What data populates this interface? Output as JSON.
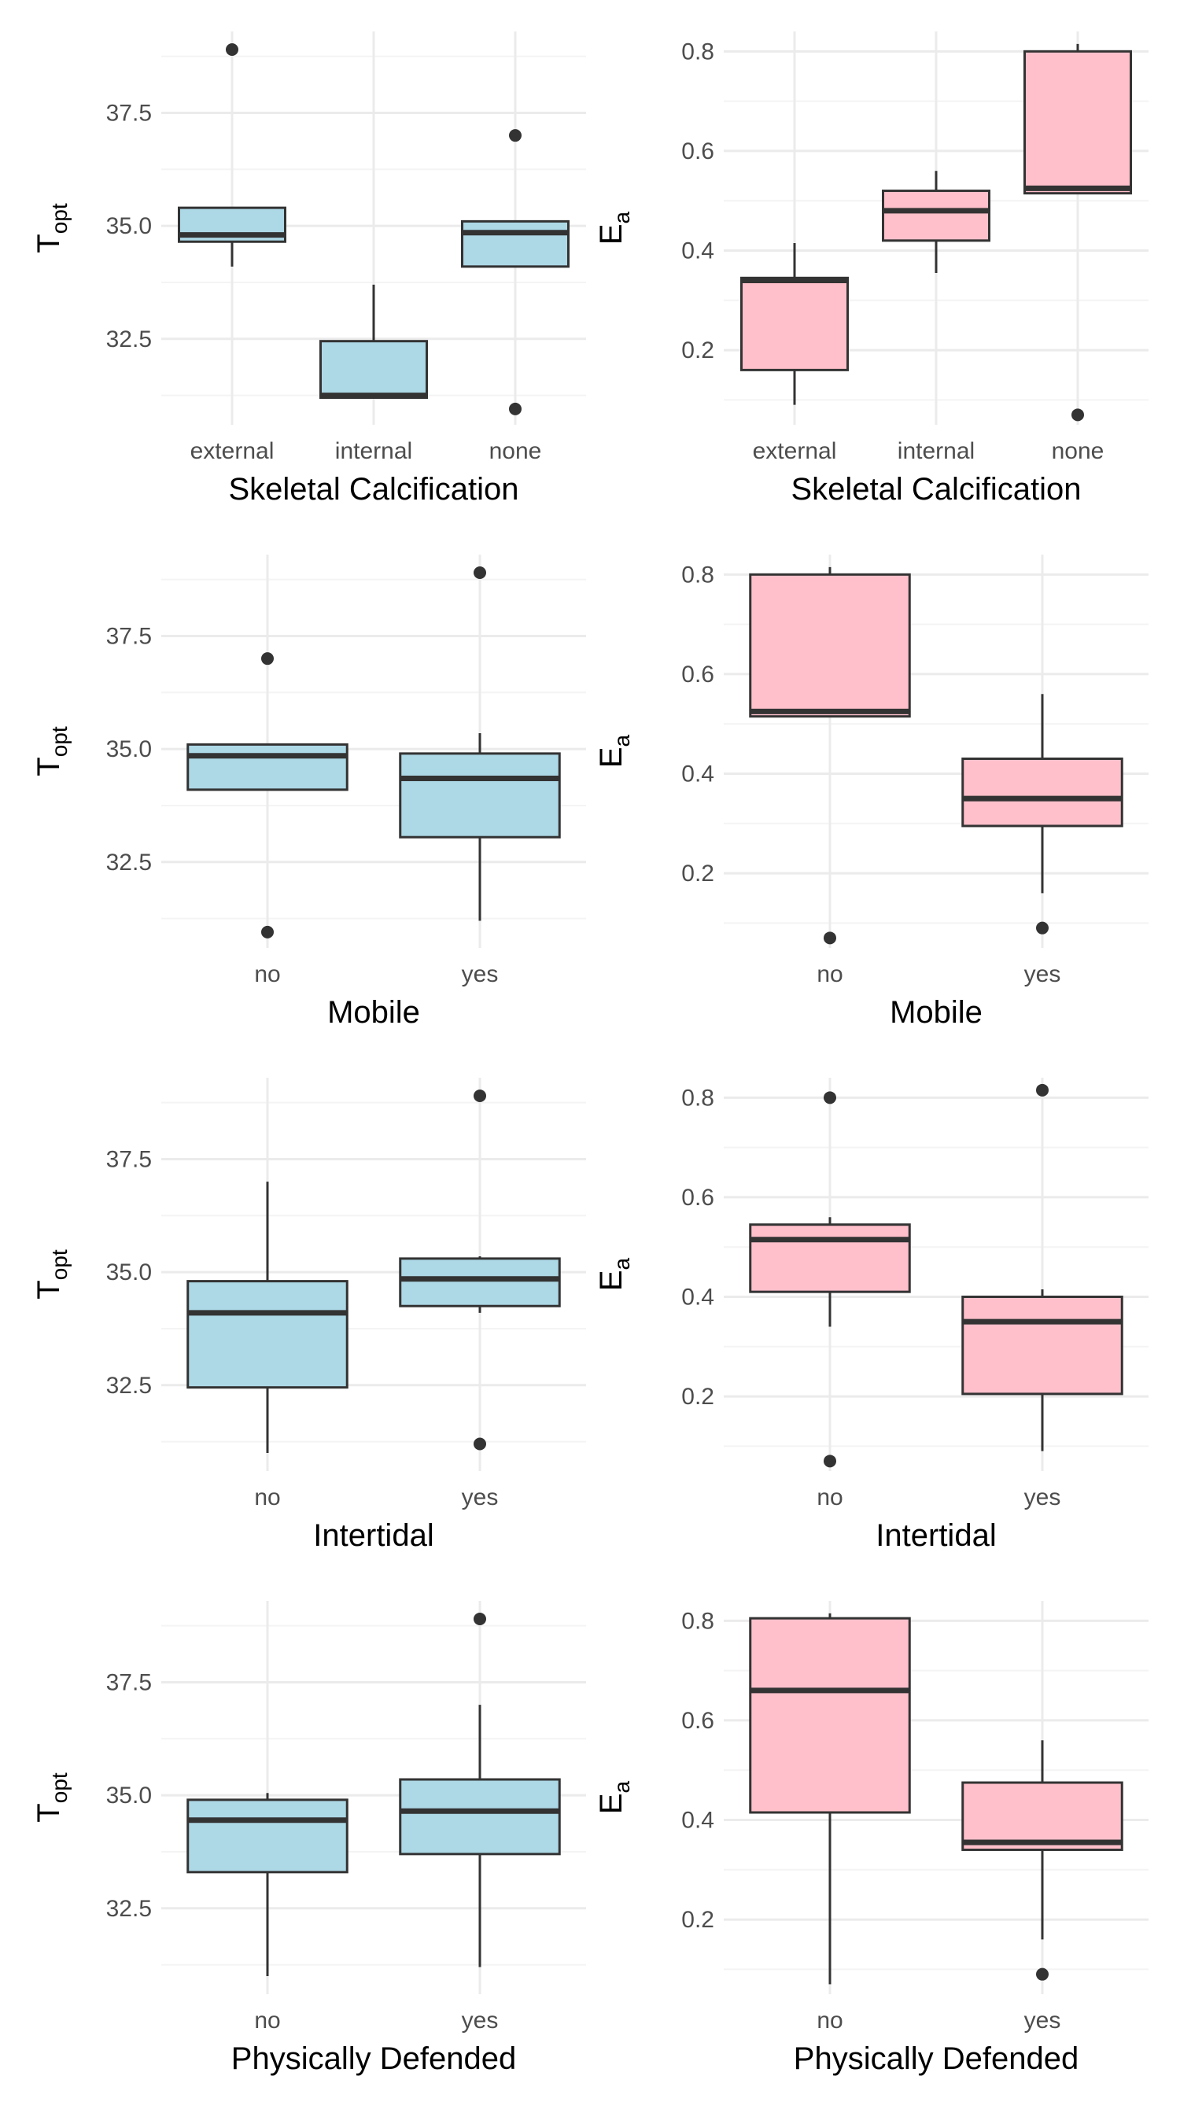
{
  "colors": {
    "topt_fill": "#add8e6",
    "ea_fill": "#ffc0cb",
    "stroke": "#333333",
    "grid_major": "#ebebeb",
    "grid_minor": "#f4f4f4",
    "tick_text": "#4d4d4d"
  },
  "chart_data": [
    {
      "type": "box",
      "xlabel": "Skeletal Calcification",
      "ylabel": {
        "main": "T",
        "sub": "opt"
      },
      "ylim": [
        30.6,
        39.3
      ],
      "yticks": [
        32.5,
        35.0,
        37.5
      ],
      "ytick_labels": [
        "32.5",
        "35.0",
        "37.5"
      ],
      "fill": "topt",
      "boxes": [
        {
          "category": "external",
          "whisker_low": 34.1,
          "q1": 34.65,
          "median": 34.8,
          "q3": 35.4,
          "whisker_high": 35.4,
          "outliers": [
            38.9
          ]
        },
        {
          "category": "internal",
          "whisker_low": 31.2,
          "q1": 31.2,
          "median": 31.25,
          "q3": 32.45,
          "whisker_high": 33.7,
          "outliers": []
        },
        {
          "category": "none",
          "whisker_low": 34.1,
          "q1": 34.1,
          "median": 34.85,
          "q3": 35.1,
          "whisker_high": 35.1,
          "outliers": [
            37.0,
            30.95
          ]
        }
      ]
    },
    {
      "type": "box",
      "xlabel": "Skeletal Calcification",
      "ylabel": {
        "main": "E",
        "sub": "a"
      },
      "ylim": [
        0.05,
        0.84
      ],
      "yticks": [
        0.2,
        0.4,
        0.6,
        0.8
      ],
      "ytick_labels": [
        "0.2",
        "0.4",
        "0.6",
        "0.8"
      ],
      "fill": "ea",
      "boxes": [
        {
          "category": "external",
          "whisker_low": 0.09,
          "q1": 0.16,
          "median": 0.34,
          "q3": 0.345,
          "whisker_high": 0.415,
          "outliers": []
        },
        {
          "category": "internal",
          "whisker_low": 0.355,
          "q1": 0.42,
          "median": 0.48,
          "q3": 0.52,
          "whisker_high": 0.56,
          "outliers": []
        },
        {
          "category": "none",
          "whisker_low": 0.515,
          "q1": 0.515,
          "median": 0.525,
          "q3": 0.8,
          "whisker_high": 0.815,
          "outliers": [
            0.07
          ]
        }
      ]
    },
    {
      "type": "box",
      "xlabel": "Mobile",
      "ylabel": {
        "main": "T",
        "sub": "opt"
      },
      "ylim": [
        30.6,
        39.3
      ],
      "yticks": [
        32.5,
        35.0,
        37.5
      ],
      "ytick_labels": [
        "32.5",
        "35.0",
        "37.5"
      ],
      "fill": "topt",
      "boxes": [
        {
          "category": "no",
          "whisker_low": 34.1,
          "q1": 34.1,
          "median": 34.85,
          "q3": 35.1,
          "whisker_high": 35.1,
          "outliers": [
            37.0,
            30.95
          ]
        },
        {
          "category": "yes",
          "whisker_low": 31.2,
          "q1": 33.05,
          "median": 34.35,
          "q3": 34.9,
          "whisker_high": 35.35,
          "outliers": [
            38.9
          ]
        }
      ]
    },
    {
      "type": "box",
      "xlabel": "Mobile",
      "ylabel": {
        "main": "E",
        "sub": "a"
      },
      "ylim": [
        0.05,
        0.84
      ],
      "yticks": [
        0.2,
        0.4,
        0.6,
        0.8
      ],
      "ytick_labels": [
        "0.2",
        "0.4",
        "0.6",
        "0.8"
      ],
      "fill": "ea",
      "boxes": [
        {
          "category": "no",
          "whisker_low": 0.515,
          "q1": 0.515,
          "median": 0.525,
          "q3": 0.8,
          "whisker_high": 0.815,
          "outliers": [
            0.07
          ]
        },
        {
          "category": "yes",
          "whisker_low": 0.16,
          "q1": 0.295,
          "median": 0.35,
          "q3": 0.43,
          "whisker_high": 0.56,
          "outliers": [
            0.09
          ]
        }
      ]
    },
    {
      "type": "box",
      "xlabel": "Intertidal",
      "ylabel": {
        "main": "T",
        "sub": "opt"
      },
      "ylim": [
        30.6,
        39.3
      ],
      "yticks": [
        32.5,
        35.0,
        37.5
      ],
      "ytick_labels": [
        "32.5",
        "35.0",
        "37.5"
      ],
      "fill": "topt",
      "boxes": [
        {
          "category": "no",
          "whisker_low": 31.0,
          "q1": 32.45,
          "median": 34.1,
          "q3": 34.8,
          "whisker_high": 37.0,
          "outliers": []
        },
        {
          "category": "yes",
          "whisker_low": 34.1,
          "q1": 34.25,
          "median": 34.85,
          "q3": 35.3,
          "whisker_high": 35.35,
          "outliers": [
            38.9,
            31.2
          ]
        }
      ]
    },
    {
      "type": "box",
      "xlabel": "Intertidal",
      "ylabel": {
        "main": "E",
        "sub": "a"
      },
      "ylim": [
        0.05,
        0.84
      ],
      "yticks": [
        0.2,
        0.4,
        0.6,
        0.8
      ],
      "ytick_labels": [
        "0.2",
        "0.4",
        "0.6",
        "0.8"
      ],
      "fill": "ea",
      "boxes": [
        {
          "category": "no",
          "whisker_low": 0.34,
          "q1": 0.41,
          "median": 0.515,
          "q3": 0.545,
          "whisker_high": 0.56,
          "outliers": [
            0.8,
            0.07
          ]
        },
        {
          "category": "yes",
          "whisker_low": 0.09,
          "q1": 0.205,
          "median": 0.35,
          "q3": 0.4,
          "whisker_high": 0.415,
          "outliers": [
            0.815
          ]
        }
      ]
    },
    {
      "type": "box",
      "xlabel": "Physically Defended",
      "ylabel": {
        "main": "T",
        "sub": "opt"
      },
      "ylim": [
        30.6,
        39.3
      ],
      "yticks": [
        32.5,
        35.0,
        37.5
      ],
      "ytick_labels": [
        "32.5",
        "35.0",
        "37.5"
      ],
      "fill": "topt",
      "boxes": [
        {
          "category": "no",
          "whisker_low": 31.0,
          "q1": 33.3,
          "median": 34.45,
          "q3": 34.9,
          "whisker_high": 35.05,
          "outliers": []
        },
        {
          "category": "yes",
          "whisker_low": 31.2,
          "q1": 33.7,
          "median": 34.65,
          "q3": 35.35,
          "whisker_high": 37.0,
          "outliers": [
            38.9
          ]
        }
      ]
    },
    {
      "type": "box",
      "xlabel": "Physically Defended",
      "ylabel": {
        "main": "E",
        "sub": "a"
      },
      "ylim": [
        0.05,
        0.84
      ],
      "yticks": [
        0.2,
        0.4,
        0.6,
        0.8
      ],
      "ytick_labels": [
        "0.2",
        "0.4",
        "0.6",
        "0.8"
      ],
      "fill": "ea",
      "boxes": [
        {
          "category": "no",
          "whisker_low": 0.07,
          "q1": 0.415,
          "median": 0.66,
          "q3": 0.805,
          "whisker_high": 0.815,
          "outliers": []
        },
        {
          "category": "yes",
          "whisker_low": 0.16,
          "q1": 0.34,
          "median": 0.355,
          "q3": 0.475,
          "whisker_high": 0.56,
          "outliers": [
            0.09
          ]
        }
      ]
    }
  ]
}
